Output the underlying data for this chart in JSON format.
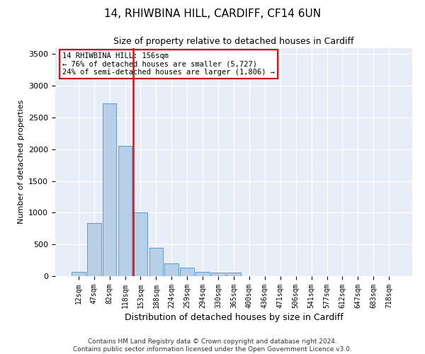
{
  "title_line1": "14, RHIWBINA HILL, CARDIFF, CF14 6UN",
  "title_line2": "Size of property relative to detached houses in Cardiff",
  "xlabel": "Distribution of detached houses by size in Cardiff",
  "ylabel": "Number of detached properties",
  "bar_color": "#b8cfe8",
  "bar_edge_color": "#6699cc",
  "background_color": "#e8eef8",
  "grid_color": "white",
  "vline_color": "red",
  "annotation_text": "14 RHIWBINA HILL: 156sqm\n← 76% of detached houses are smaller (5,727)\n24% of semi-detached houses are larger (1,806) →",
  "categories": [
    "12sqm",
    "47sqm",
    "82sqm",
    "118sqm",
    "153sqm",
    "188sqm",
    "224sqm",
    "259sqm",
    "294sqm",
    "330sqm",
    "365sqm",
    "400sqm",
    "436sqm",
    "471sqm",
    "506sqm",
    "541sqm",
    "577sqm",
    "612sqm",
    "647sqm",
    "683sqm",
    "718sqm"
  ],
  "bar_heights": [
    65,
    840,
    2720,
    2050,
    1000,
    450,
    205,
    130,
    70,
    60,
    55,
    0,
    0,
    0,
    0,
    0,
    0,
    0,
    0,
    0,
    0
  ],
  "ylim": [
    0,
    3600
  ],
  "yticks": [
    0,
    500,
    1000,
    1500,
    2000,
    2500,
    3000,
    3500
  ],
  "footnote_line1": "Contains HM Land Registry data © Crown copyright and database right 2024.",
  "footnote_line2": "Contains public sector information licensed under the Open Government Licence v3.0.",
  "title_fontsize": 11,
  "subtitle_fontsize": 9,
  "footnote_fontsize": 6.5,
  "ylabel_fontsize": 8,
  "xlabel_fontsize": 9,
  "tick_fontsize": 7,
  "annotation_fontsize": 7.5
}
